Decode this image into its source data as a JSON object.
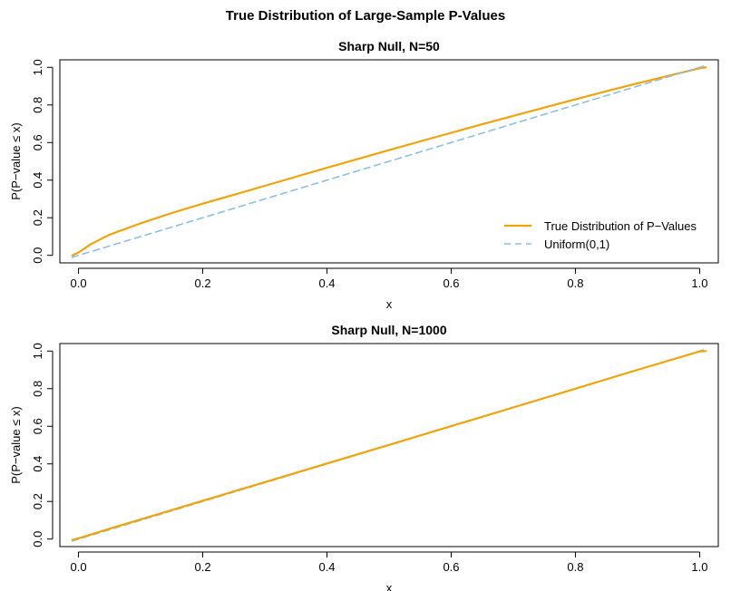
{
  "figure": {
    "title": "True Distribution of Large-Sample P-Values"
  },
  "colors": {
    "true_distribution": "#f0a30a",
    "uniform": "#8dbfe3",
    "axis": "#000000"
  },
  "chart_data": [
    {
      "type": "line",
      "title": "Sharp Null, N=50",
      "xlabel": "x",
      "ylabel": "P(P−value ≤ x)",
      "xlim": [
        -0.03,
        1.03
      ],
      "ylim": [
        -0.04,
        1.04
      ],
      "xticks": [
        0.0,
        0.2,
        0.4,
        0.6,
        0.8,
        1.0
      ],
      "xtick_labels": [
        "0.0",
        "0.2",
        "0.4",
        "0.6",
        "0.8",
        "1.0"
      ],
      "yticks": [
        0.0,
        0.2,
        0.4,
        0.6,
        0.8,
        1.0
      ],
      "ytick_labels": [
        "0.0",
        "0.2",
        "0.4",
        "0.6",
        "0.8",
        "1.0"
      ],
      "grid": false,
      "legend": {
        "position": "bottom-right",
        "entries": [
          {
            "label": "True Distribution of P−Values",
            "style": "solid",
            "color": "#f0a30a"
          },
          {
            "label": "Uniform(0,1)",
            "style": "dashed",
            "color": "#8dbfe3"
          }
        ]
      },
      "series": [
        {
          "name": "True Distribution of P−Values",
          "style": "solid",
          "color": "#f0a30a",
          "x": [
            -0.01,
            0.0,
            0.02,
            0.05,
            0.1,
            0.15,
            0.2,
            0.25,
            0.3,
            0.35,
            0.4,
            0.45,
            0.5,
            0.55,
            0.6,
            0.65,
            0.7,
            0.75,
            0.8,
            0.85,
            0.9,
            0.95,
            1.0,
            1.01
          ],
          "y": [
            0.0,
            0.015,
            0.06,
            0.11,
            0.17,
            0.225,
            0.275,
            0.322,
            0.37,
            0.418,
            0.466,
            0.513,
            0.56,
            0.606,
            0.652,
            0.697,
            0.742,
            0.786,
            0.83,
            0.873,
            0.915,
            0.955,
            0.995,
            1.0
          ]
        },
        {
          "name": "Uniform(0,1)",
          "style": "dashed",
          "color": "#8dbfe3",
          "x": [
            -0.01,
            1.01
          ],
          "y": [
            -0.01,
            1.01
          ]
        }
      ]
    },
    {
      "type": "line",
      "title": "Sharp Null, N=1000",
      "xlabel": "x",
      "ylabel": "P(P−value ≤ x)",
      "xlim": [
        -0.03,
        1.03
      ],
      "ylim": [
        -0.04,
        1.04
      ],
      "xticks": [
        0.0,
        0.2,
        0.4,
        0.6,
        0.8,
        1.0
      ],
      "xtick_labels": [
        "0.0",
        "0.2",
        "0.4",
        "0.6",
        "0.8",
        "1.0"
      ],
      "yticks": [
        0.0,
        0.2,
        0.4,
        0.6,
        0.8,
        1.0
      ],
      "ytick_labels": [
        "0.0",
        "0.2",
        "0.4",
        "0.6",
        "0.8",
        "1.0"
      ],
      "grid": false,
      "series": [
        {
          "name": "Uniform(0,1)",
          "style": "dashed",
          "color": "#8dbfe3",
          "x": [
            -0.01,
            1.01
          ],
          "y": [
            -0.01,
            1.01
          ]
        },
        {
          "name": "True Distribution of P−Values",
          "style": "solid",
          "color": "#f0a30a",
          "x": [
            -0.01,
            0.0,
            0.05,
            0.1,
            0.2,
            0.3,
            0.4,
            0.5,
            0.6,
            0.7,
            0.8,
            0.9,
            1.0,
            1.01
          ],
          "y": [
            -0.005,
            0.004,
            0.055,
            0.104,
            0.204,
            0.303,
            0.402,
            0.501,
            0.601,
            0.7,
            0.8,
            0.9,
            0.998,
            1.0
          ]
        }
      ]
    }
  ]
}
